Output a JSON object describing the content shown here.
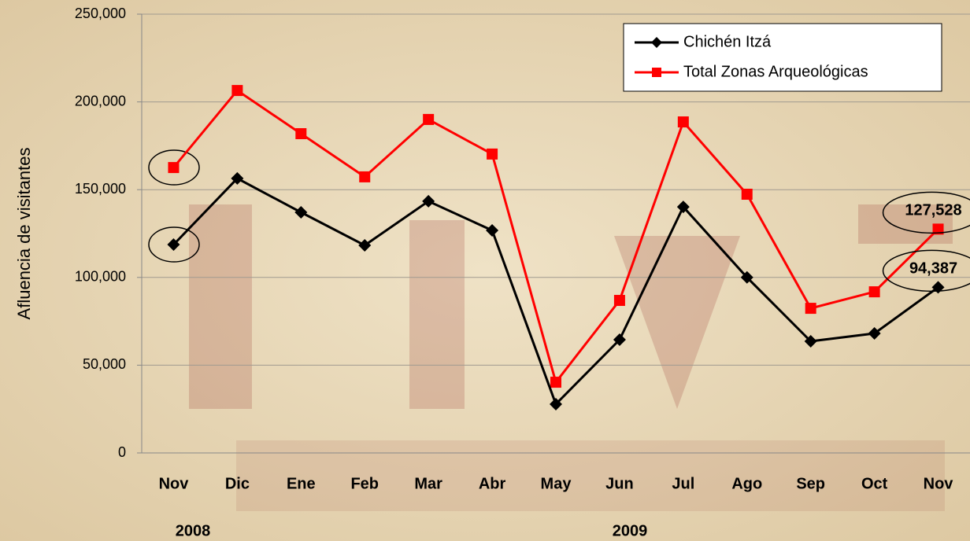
{
  "chart_data": {
    "type": "line",
    "y_label": "Afluencia de visitantes",
    "categories": [
      "Nov",
      "Dic",
      "Ene",
      "Feb",
      "Mar",
      "Abr",
      "May",
      "Jun",
      "Jul",
      "Ago",
      "Sep",
      "Oct",
      "Nov"
    ],
    "year_labels": [
      "2008",
      "2009"
    ],
    "series": [
      {
        "name": "Chichén Itzá",
        "color": "#000000",
        "marker": "diamond",
        "values": [
          118700,
          156400,
          137100,
          118300,
          143400,
          126800,
          27800,
          64500,
          140200,
          100000,
          63600,
          68100,
          94387
        ],
        "value_labels": [
          null,
          null,
          null,
          null,
          null,
          null,
          null,
          null,
          null,
          null,
          null,
          null,
          "94,387"
        ]
      },
      {
        "name": "Total Zonas Arqueológicas",
        "color": "#ff0000",
        "marker": "square",
        "values": [
          162600,
          206500,
          181900,
          157300,
          190000,
          170300,
          40300,
          86900,
          188600,
          147400,
          82400,
          91800,
          127528
        ],
        "value_labels": [
          null,
          null,
          null,
          null,
          null,
          null,
          null,
          null,
          null,
          null,
          null,
          null,
          "127,528"
        ]
      }
    ],
    "ylim": [
      0,
      250000
    ],
    "yticks": [
      0,
      {
        "value": 50000,
        "label": "50,000"
      },
      {
        "value": 100000,
        "label": "100,000"
      },
      {
        "value": 150000,
        "label": "150,000"
      },
      {
        "value": 200000,
        "label": "200,000"
      },
      {
        "value": 250000,
        "label": "250,000"
      }
    ],
    "grid": true,
    "legend": "upper right"
  }
}
